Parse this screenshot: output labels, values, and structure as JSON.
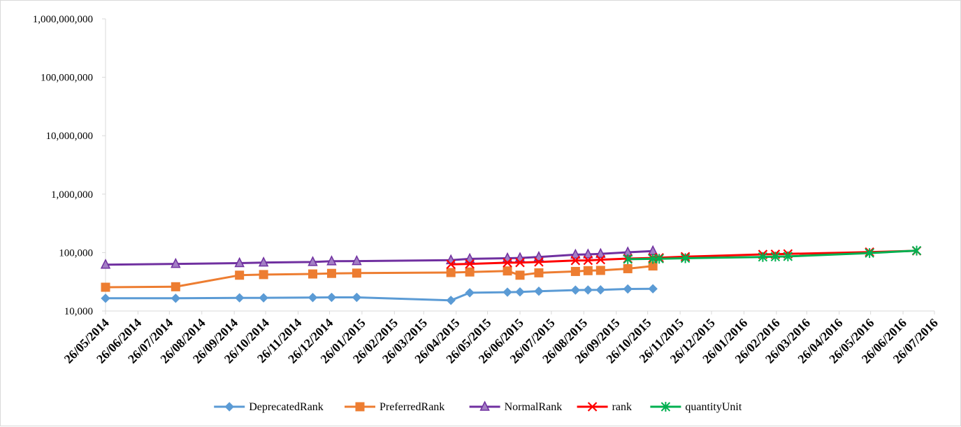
{
  "chart_data": {
    "type": "line",
    "y_scale": "log",
    "ylim": [
      10000,
      1000000000
    ],
    "y_ticks": [
      10000,
      100000,
      1000000,
      10000000,
      100000000,
      1000000000
    ],
    "y_tick_labels": [
      "10,000",
      "100,000",
      "1,000,000",
      "10,000,000",
      "100,000,000",
      "1,000,000,000"
    ],
    "x_ticks": [
      "26/05/2014",
      "26/06/2014",
      "26/07/2014",
      "26/08/2014",
      "26/09/2014",
      "26/10/2014",
      "26/11/2014",
      "26/12/2014",
      "26/01/2015",
      "26/02/2015",
      "26/03/2015",
      "26/04/2015",
      "26/05/2015",
      "26/06/2015",
      "26/07/2015",
      "26/08/2015",
      "26/09/2015",
      "26/10/2015",
      "26/11/2015",
      "26/12/2015",
      "26/01/2016",
      "26/02/2016",
      "26/03/2016",
      "26/04/2016",
      "26/05/2016",
      "26/06/2016",
      "26/07/2016"
    ],
    "grid": false,
    "legend_position": "bottom",
    "series": [
      {
        "name": "DeprecatedRank",
        "color": "#5b9bd5",
        "marker": "diamond",
        "points": [
          {
            "x": "26/05/2014",
            "y": 16500
          },
          {
            "x": "01/08/2014",
            "y": 16500
          },
          {
            "x": "01/10/2014",
            "y": 16800
          },
          {
            "x": "24/10/2014",
            "y": 16800
          },
          {
            "x": "10/12/2014",
            "y": 17000
          },
          {
            "x": "28/12/2014",
            "y": 17100
          },
          {
            "x": "21/01/2015",
            "y": 17100
          },
          {
            "x": "21/04/2015",
            "y": 15200
          },
          {
            "x": "09/05/2015",
            "y": 20500
          },
          {
            "x": "14/06/2015",
            "y": 21000
          },
          {
            "x": "26/06/2015",
            "y": 21200
          },
          {
            "x": "14/07/2015",
            "y": 21800
          },
          {
            "x": "18/08/2015",
            "y": 22800
          },
          {
            "x": "30/08/2015",
            "y": 22900
          },
          {
            "x": "11/09/2015",
            "y": 23000
          },
          {
            "x": "07/10/2015",
            "y": 23800
          },
          {
            "x": "31/10/2015",
            "y": 24000
          }
        ]
      },
      {
        "name": "PreferredRank",
        "color": "#ed7d31",
        "marker": "square",
        "points": [
          {
            "x": "26/05/2014",
            "y": 25500
          },
          {
            "x": "01/08/2014",
            "y": 26000
          },
          {
            "x": "01/10/2014",
            "y": 41000
          },
          {
            "x": "24/10/2014",
            "y": 42000
          },
          {
            "x": "10/12/2014",
            "y": 43000
          },
          {
            "x": "28/12/2014",
            "y": 44000
          },
          {
            "x": "21/01/2015",
            "y": 44500
          },
          {
            "x": "21/04/2015",
            "y": 45500
          },
          {
            "x": "09/05/2015",
            "y": 46500
          },
          {
            "x": "14/06/2015",
            "y": 48500
          },
          {
            "x": "26/06/2015",
            "y": 41000
          },
          {
            "x": "14/07/2015",
            "y": 45000
          },
          {
            "x": "18/08/2015",
            "y": 47500
          },
          {
            "x": "30/08/2015",
            "y": 49000
          },
          {
            "x": "11/09/2015",
            "y": 49500
          },
          {
            "x": "07/10/2015",
            "y": 53000
          },
          {
            "x": "31/10/2015",
            "y": 59000
          }
        ]
      },
      {
        "name": "NormalRank",
        "color": "#7030a0",
        "marker": "triangle",
        "points": [
          {
            "x": "26/05/2014",
            "y": 62000
          },
          {
            "x": "01/08/2014",
            "y": 64000
          },
          {
            "x": "01/10/2014",
            "y": 66000
          },
          {
            "x": "24/10/2014",
            "y": 67500
          },
          {
            "x": "10/12/2014",
            "y": 69000
          },
          {
            "x": "28/12/2014",
            "y": 71000
          },
          {
            "x": "21/01/2015",
            "y": 71500
          },
          {
            "x": "21/04/2015",
            "y": 74000
          },
          {
            "x": "09/05/2015",
            "y": 78000
          },
          {
            "x": "14/06/2015",
            "y": 80000
          },
          {
            "x": "26/06/2015",
            "y": 81000
          },
          {
            "x": "14/07/2015",
            "y": 84000
          },
          {
            "x": "18/08/2015",
            "y": 92000
          },
          {
            "x": "30/08/2015",
            "y": 93000
          },
          {
            "x": "11/09/2015",
            "y": 95000
          },
          {
            "x": "07/10/2015",
            "y": 101000
          },
          {
            "x": "31/10/2015",
            "y": 106000
          }
        ]
      },
      {
        "name": "rank",
        "color": "#ff0000",
        "marker": "x",
        "points": [
          {
            "x": "21/04/2015",
            "y": 63000
          },
          {
            "x": "09/05/2015",
            "y": 64000
          },
          {
            "x": "14/06/2015",
            "y": 67000
          },
          {
            "x": "26/06/2015",
            "y": 67500
          },
          {
            "x": "14/07/2015",
            "y": 69000
          },
          {
            "x": "18/08/2015",
            "y": 73000
          },
          {
            "x": "30/08/2015",
            "y": 73500
          },
          {
            "x": "11/09/2015",
            "y": 75500
          },
          {
            "x": "07/10/2015",
            "y": 79000
          },
          {
            "x": "31/10/2015",
            "y": 81000
          },
          {
            "x": "06/11/2015",
            "y": 81500
          },
          {
            "x": "01/12/2015",
            "y": 85000
          },
          {
            "x": "13/02/2016",
            "y": 93000
          },
          {
            "x": "25/02/2016",
            "y": 93500
          },
          {
            "x": "08/03/2016",
            "y": 95000
          },
          {
            "x": "25/05/2016",
            "y": 102000
          },
          {
            "x": "09/07/2016",
            "y": 107000
          }
        ]
      },
      {
        "name": "quantityUnit",
        "color": "#00b050",
        "marker": "star",
        "points": [
          {
            "x": "07/10/2015",
            "y": 77000
          },
          {
            "x": "31/10/2015",
            "y": 78000
          },
          {
            "x": "06/11/2015",
            "y": 78500
          },
          {
            "x": "01/12/2015",
            "y": 80000
          },
          {
            "x": "13/02/2016",
            "y": 84000
          },
          {
            "x": "25/02/2016",
            "y": 85000
          },
          {
            "x": "08/03/2016",
            "y": 86000
          },
          {
            "x": "25/05/2016",
            "y": 98000
          },
          {
            "x": "09/07/2016",
            "y": 108000
          }
        ]
      }
    ]
  }
}
